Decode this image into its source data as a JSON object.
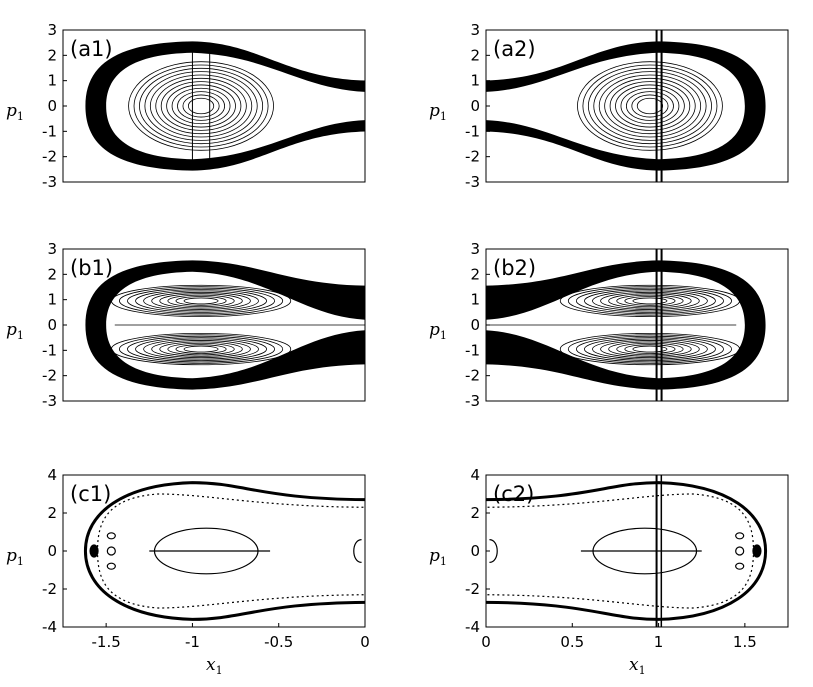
{
  "chart_data": {
    "type": "contour",
    "grid": false,
    "panels": [
      {
        "label": "(a1)",
        "x_range": [
          -1.75,
          0
        ],
        "y_range": [
          -3,
          3
        ],
        "y_ticks": [
          "3",
          "2",
          "1",
          "0",
          "-1",
          "-2",
          "-3"
        ],
        "x_ticks": [],
        "ylabel": "p",
        "ylabel_sub": "1",
        "xlabel": "",
        "xlabel_sub": "",
        "mirror": false
      },
      {
        "label": "(a2)",
        "x_range": [
          0,
          1.75
        ],
        "y_range": [
          -3,
          3
        ],
        "y_ticks": [
          "3",
          "2",
          "1",
          "0",
          "-1",
          "-2",
          "-3"
        ],
        "x_ticks": [],
        "ylabel": "p",
        "ylabel_sub": "1",
        "xlabel": "",
        "xlabel_sub": "",
        "mirror": true
      },
      {
        "label": "(b1)",
        "x_range": [
          -1.75,
          0
        ],
        "y_range": [
          -3,
          3
        ],
        "y_ticks": [
          "3",
          "2",
          "1",
          "0",
          "-1",
          "-2",
          "-3"
        ],
        "x_ticks": [],
        "ylabel": "p",
        "ylabel_sub": "1",
        "xlabel": "",
        "xlabel_sub": "",
        "mirror": false
      },
      {
        "label": "(b2)",
        "x_range": [
          0,
          1.75
        ],
        "y_range": [
          -3,
          3
        ],
        "y_ticks": [
          "3",
          "2",
          "1",
          "0",
          "-1",
          "-2",
          "-3"
        ],
        "x_ticks": [],
        "ylabel": "p",
        "ylabel_sub": "1",
        "xlabel": "",
        "xlabel_sub": "",
        "mirror": true
      },
      {
        "label": "(c1)",
        "x_range": [
          -1.75,
          0
        ],
        "y_range": [
          -4,
          4
        ],
        "y_ticks": [
          "4",
          "2",
          "0",
          "-2",
          "-4"
        ],
        "x_ticks": [
          "-1.5",
          "-1",
          "-0.5",
          "0"
        ],
        "ylabel": "p",
        "ylabel_sub": "1",
        "xlabel": "x",
        "xlabel_sub": "1",
        "mirror": false
      },
      {
        "label": "(c2)",
        "x_range": [
          0,
          1.75
        ],
        "y_range": [
          -4,
          4
        ],
        "y_ticks": [
          "4",
          "2",
          "0",
          "-2",
          "-4"
        ],
        "x_ticks": [
          "0",
          "0.5",
          "1",
          "1.5"
        ],
        "ylabel": "p",
        "ylabel_sub": "1",
        "xlabel": "x",
        "xlabel_sub": "1",
        "mirror": true
      }
    ]
  }
}
